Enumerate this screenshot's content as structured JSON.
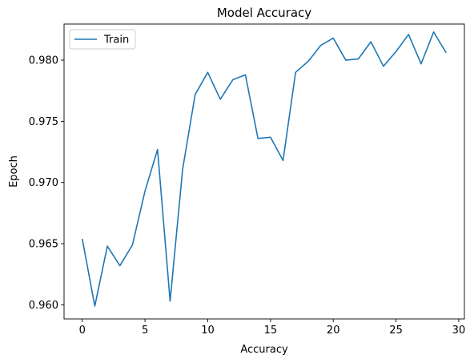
{
  "chart_data": {
    "type": "line",
    "title": "Model Accuracy",
    "xlabel": "Accuracy",
    "ylabel": "Epoch",
    "xlim": [
      -1.45,
      30.45
    ],
    "ylim": [
      0.95885,
      0.98295
    ],
    "xticks": [
      0,
      5,
      10,
      15,
      20,
      25,
      30
    ],
    "xtick_labels": [
      "0",
      "5",
      "10",
      "15",
      "20",
      "25",
      "30"
    ],
    "yticks": [
      0.96,
      0.965,
      0.97,
      0.975,
      0.98
    ],
    "ytick_labels": [
      "0.960",
      "0.965",
      "0.970",
      "0.975",
      "0.980"
    ],
    "grid": false,
    "legend_position": "top-left",
    "series": [
      {
        "name": "Train",
        "color": "#1f77b4",
        "x": [
          0,
          1,
          2,
          3,
          4,
          5,
          6,
          7,
          8,
          9,
          10,
          11,
          12,
          13,
          14,
          15,
          16,
          17,
          18,
          19,
          20,
          21,
          22,
          23,
          24,
          25,
          26,
          27,
          28,
          29
        ],
        "y": [
          0.9654,
          0.9599,
          0.9648,
          0.9632,
          0.9649,
          0.9693,
          0.9727,
          0.9603,
          0.9711,
          0.9772,
          0.979,
          0.9768,
          0.9784,
          0.9788,
          0.9736,
          0.9737,
          0.9718,
          0.979,
          0.9799,
          0.9812,
          0.9818,
          0.98,
          0.9801,
          0.9815,
          0.9795,
          0.9807,
          0.9821,
          0.9797,
          0.9823,
          0.9806
        ]
      }
    ]
  }
}
